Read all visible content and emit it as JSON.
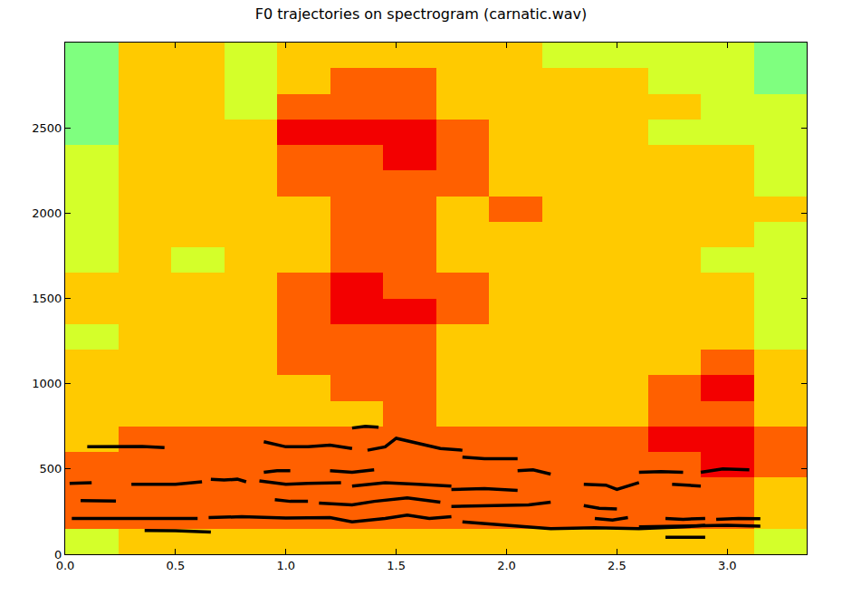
{
  "chart_data": {
    "type": "spectrogram",
    "title": "F0 trajectories on spectrogram (carnatic.wav)",
    "xlim": [
      0,
      3.36
    ],
    "ylim": [
      0,
      3000
    ],
    "xticks": [
      {
        "value": 0,
        "label": "0.0"
      },
      {
        "value": 0.5,
        "label": "0.5"
      },
      {
        "value": 1,
        "label": "1.0"
      },
      {
        "value": 1.5,
        "label": "1.5"
      },
      {
        "value": 2,
        "label": "2.0"
      },
      {
        "value": 2.5,
        "label": "2.5"
      },
      {
        "value": 3,
        "label": "3.0"
      }
    ],
    "yticks": [
      0,
      500,
      1000,
      1500,
      2000,
      2500
    ],
    "grid": false,
    "heatmap": {
      "x": [
        0.12,
        0.36,
        0.6,
        0.84,
        1.08,
        1.32,
        1.56,
        1.8,
        2.04,
        2.28,
        2.52,
        2.76,
        3.0,
        3.24
      ],
      "y": [
        75,
        225,
        375,
        525,
        675,
        825,
        975,
        1125,
        1275,
        1425,
        1575,
        1725,
        1875,
        2025,
        2175,
        2325,
        2475,
        2625,
        2775,
        2925
      ],
      "zlim": [
        0,
        10
      ],
      "z": [
        [
          6,
          7,
          7,
          7,
          7,
          7,
          7,
          7,
          7,
          7,
          7,
          7,
          7,
          6
        ],
        [
          8,
          8,
          8,
          8,
          8,
          8,
          8,
          8,
          8,
          8,
          8,
          8,
          8,
          7
        ],
        [
          8,
          8,
          8,
          8,
          8,
          8,
          8,
          8,
          8,
          8,
          8,
          8,
          8,
          7
        ],
        [
          8,
          8,
          8,
          8,
          8,
          8,
          8,
          8,
          8,
          8,
          8,
          8,
          9,
          8
        ],
        [
          7,
          8,
          8,
          8,
          8,
          8,
          8,
          8,
          8,
          8,
          8,
          9,
          9,
          8
        ],
        [
          7,
          7,
          7,
          7,
          7,
          7,
          8,
          7,
          7,
          7,
          7,
          8,
          8,
          7
        ],
        [
          7,
          7,
          7,
          7,
          7,
          8,
          8,
          7,
          7,
          7,
          7,
          8,
          9,
          7
        ],
        [
          7,
          7,
          7,
          7,
          8,
          8,
          8,
          7,
          7,
          7,
          7,
          7,
          8,
          7
        ],
        [
          6,
          7,
          7,
          7,
          8,
          8,
          8,
          7,
          7,
          7,
          7,
          7,
          7,
          6
        ],
        [
          7,
          7,
          7,
          7,
          8,
          9,
          9,
          8,
          7,
          7,
          7,
          7,
          7,
          6
        ],
        [
          7,
          7,
          7,
          7,
          8,
          9,
          8,
          8,
          7,
          7,
          7,
          7,
          7,
          6
        ],
        [
          6,
          7,
          6,
          7,
          7,
          8,
          8,
          7,
          7,
          7,
          7,
          7,
          6,
          6
        ],
        [
          6,
          7,
          7,
          7,
          7,
          8,
          8,
          7,
          7,
          7,
          7,
          7,
          7,
          6
        ],
        [
          6,
          7,
          7,
          7,
          7,
          8,
          8,
          7,
          8,
          7,
          7,
          7,
          7,
          7
        ],
        [
          6,
          7,
          7,
          7,
          8,
          8,
          8,
          8,
          7,
          7,
          7,
          7,
          7,
          6
        ],
        [
          6,
          7,
          7,
          7,
          8,
          8,
          9,
          8,
          7,
          7,
          7,
          7,
          7,
          6
        ],
        [
          5,
          7,
          7,
          7,
          9,
          9,
          9,
          8,
          7,
          7,
          7,
          6,
          6,
          6
        ],
        [
          5,
          7,
          7,
          6,
          8,
          8,
          8,
          7,
          7,
          7,
          7,
          7,
          6,
          6
        ],
        [
          5,
          7,
          7,
          6,
          7,
          8,
          8,
          7,
          7,
          7,
          7,
          6,
          6,
          5
        ],
        [
          5,
          7,
          7,
          6,
          7,
          7,
          7,
          7,
          7,
          6,
          6,
          6,
          6,
          5
        ]
      ]
    },
    "series": [
      {
        "color": "#000000",
        "x": [
          0.1,
          0.2,
          0.3,
          0.35,
          0.45
        ],
        "y": [
          630,
          630,
          628,
          632,
          625
        ]
      },
      {
        "color": "#000000",
        "x": [
          0.02,
          0.12
        ],
        "y": [
          415,
          420
        ]
      },
      {
        "color": "#000000",
        "x": [
          0.3,
          0.4,
          0.5,
          0.62
        ],
        "y": [
          410,
          412,
          410,
          425
        ]
      },
      {
        "color": "#000000",
        "x": [
          0.07,
          0.23
        ],
        "y": [
          315,
          312
        ]
      },
      {
        "color": "#000000",
        "x": [
          0.03,
          0.2,
          0.4,
          0.6
        ],
        "y": [
          210,
          208,
          210,
          210
        ]
      },
      {
        "color": "#000000",
        "x": [
          0.36,
          0.5,
          0.66
        ],
        "y": [
          140,
          138,
          130
        ]
      },
      {
        "color": "#000000",
        "x": [
          0.66,
          0.72,
          0.78,
          0.82
        ],
        "y": [
          440,
          435,
          440,
          425
        ]
      },
      {
        "color": "#000000",
        "x": [
          0.65,
          0.8,
          1.0,
          1.2,
          1.3,
          1.45,
          1.55,
          1.65,
          1.75
        ],
        "y": [
          215,
          220,
          212,
          215,
          190,
          210,
          230,
          210,
          220
        ]
      },
      {
        "color": "#000000",
        "x": [
          0.9,
          1.0,
          1.1,
          1.2,
          1.3
        ],
        "y": [
          660,
          630,
          630,
          640,
          620
        ]
      },
      {
        "color": "#000000",
        "x": [
          1.3,
          1.36,
          1.42
        ],
        "y": [
          740,
          750,
          745
        ]
      },
      {
        "color": "#000000",
        "x": [
          1.37,
          1.45,
          1.5,
          1.6,
          1.7,
          1.8
        ],
        "y": [
          610,
          630,
          680,
          650,
          620,
          610
        ]
      },
      {
        "color": "#000000",
        "x": [
          0.9,
          0.96,
          1.02
        ],
        "y": [
          480,
          490,
          490
        ]
      },
      {
        "color": "#000000",
        "x": [
          1.2,
          1.3,
          1.4
        ],
        "y": [
          490,
          480,
          495
        ]
      },
      {
        "color": "#000000",
        "x": [
          0.88,
          1.0,
          1.1,
          1.25
        ],
        "y": [
          430,
          410,
          415,
          420
        ]
      },
      {
        "color": "#000000",
        "x": [
          1.3,
          1.45,
          1.6,
          1.75
        ],
        "y": [
          400,
          420,
          410,
          400
        ]
      },
      {
        "color": "#000000",
        "x": [
          1.75,
          1.9,
          2.05
        ],
        "y": [
          380,
          385,
          375
        ]
      },
      {
        "color": "#000000",
        "x": [
          0.95,
          1.02,
          1.1
        ],
        "y": [
          320,
          310,
          310
        ]
      },
      {
        "color": "#000000",
        "x": [
          1.15,
          1.3,
          1.4,
          1.55,
          1.7
        ],
        "y": [
          300,
          290,
          310,
          330,
          305
        ]
      },
      {
        "color": "#000000",
        "x": [
          1.8,
          1.9,
          2.05
        ],
        "y": [
          570,
          560,
          560
        ]
      },
      {
        "color": "#000000",
        "x": [
          1.8,
          2.0,
          2.2,
          2.4,
          2.6,
          2.8,
          2.9
        ],
        "y": [
          190,
          170,
          150,
          155,
          150,
          160,
          170
        ]
      },
      {
        "color": "#000000",
        "x": [
          2.05,
          2.12,
          2.2
        ],
        "y": [
          490,
          495,
          470
        ]
      },
      {
        "color": "#000000",
        "x": [
          1.75,
          2.0,
          2.1,
          2.2
        ],
        "y": [
          280,
          285,
          290,
          305
        ]
      },
      {
        "color": "#000000",
        "x": [
          2.35,
          2.42,
          2.5
        ],
        "y": [
          285,
          270,
          265
        ]
      },
      {
        "color": "#000000",
        "x": [
          2.4,
          2.48,
          2.55
        ],
        "y": [
          210,
          200,
          215
        ]
      },
      {
        "color": "#000000",
        "x": [
          2.35,
          2.45,
          2.5,
          2.6
        ],
        "y": [
          410,
          405,
          380,
          420
        ]
      },
      {
        "color": "#000000",
        "x": [
          2.6,
          2.7,
          2.8
        ],
        "y": [
          480,
          485,
          480
        ]
      },
      {
        "color": "#000000",
        "x": [
          2.75,
          2.82,
          2.88
        ],
        "y": [
          410,
          405,
          400
        ]
      },
      {
        "color": "#000000",
        "x": [
          2.88,
          2.98,
          3.1
        ],
        "y": [
          480,
          500,
          495
        ]
      },
      {
        "color": "#000000",
        "x": [
          2.6,
          2.8,
          3.0,
          3.15
        ],
        "y": [
          160,
          165,
          170,
          165
        ]
      },
      {
        "color": "#000000",
        "x": [
          2.72,
          2.8,
          2.9
        ],
        "y": [
          100,
          98,
          100
        ]
      },
      {
        "color": "#000000",
        "x": [
          2.72,
          2.8,
          2.9
        ],
        "y": [
          210,
          205,
          210
        ]
      },
      {
        "color": "#000000",
        "x": [
          2.95,
          3.05,
          3.15
        ],
        "y": [
          205,
          210,
          208
        ]
      }
    ]
  }
}
